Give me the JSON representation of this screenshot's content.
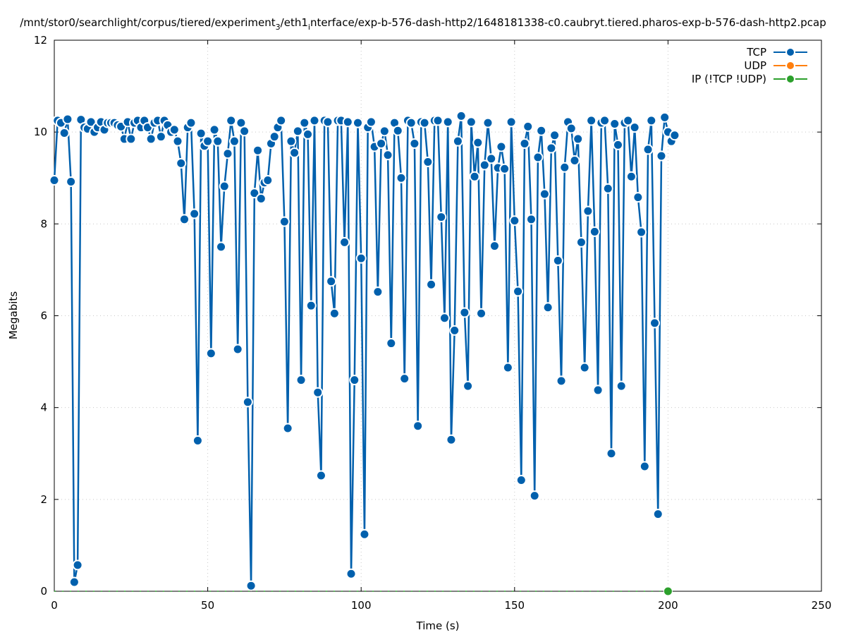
{
  "chart_data": {
    "type": "line",
    "title": {
      "part1": "/mnt/stor0/searchlight/corpus/tiered/experiment",
      "sub1": "3",
      "part2": "/eth1",
      "sub2": "i",
      "part3": "nterface/exp-b-576-dash-http2/1648181338-c0.caubryt.tiered.pharos-exp-b-576-dash-http2.pcap"
    },
    "xlabel": "Time (s)",
    "ylabel": "Megabits",
    "xlim": [
      0,
      250
    ],
    "ylim": [
      0,
      12
    ],
    "xticks": [
      "0",
      "50",
      "100",
      "150",
      "200",
      "250"
    ],
    "yticks": [
      "0",
      "2",
      "4",
      "6",
      "8",
      "10",
      "12"
    ],
    "grid": true,
    "legend_position": "top-right",
    "x_interval": 1.087,
    "series": [
      {
        "name": "TCP",
        "color": "#0060ad",
        "values": [
          8.95,
          10.25,
          10.2,
          9.98,
          10.28,
          8.92,
          0.2,
          0.57,
          10.27,
          10.1,
          10.07,
          10.22,
          10.0,
          10.1,
          10.22,
          10.05,
          10.2,
          10.2,
          10.2,
          10.15,
          10.12,
          9.85,
          10.22,
          9.85,
          10.2,
          10.25,
          10.1,
          10.25,
          10.1,
          9.85,
          10.2,
          10.25,
          9.9,
          10.25,
          10.15,
          10.0,
          10.05,
          9.8,
          9.32,
          8.1,
          10.1,
          10.2,
          8.22,
          3.28,
          9.97,
          9.7,
          9.8,
          5.18,
          10.05,
          9.8,
          7.5,
          8.82,
          9.53,
          10.25,
          9.8,
          5.27,
          10.2,
          10.02,
          4.12,
          0.12,
          8.67,
          9.6,
          8.55,
          8.9,
          8.95,
          9.75,
          9.9,
          10.1,
          10.25,
          8.05,
          3.55,
          9.8,
          9.55,
          10.02,
          4.6,
          10.2,
          9.95,
          6.22,
          10.25,
          4.33,
          2.52,
          10.25,
          10.22,
          6.75,
          6.05,
          10.25,
          10.25,
          7.6,
          10.22,
          0.38,
          4.6,
          10.2,
          7.25,
          1.24,
          10.1,
          10.22,
          9.68,
          6.52,
          9.75,
          10.02,
          9.5,
          5.4,
          10.2,
          10.03,
          9.0,
          4.63,
          10.25,
          10.2,
          9.75,
          3.6,
          10.22,
          10.2,
          9.35,
          6.68,
          10.25,
          10.25,
          8.15,
          5.95,
          10.22,
          3.3,
          5.68,
          9.8,
          10.35,
          6.07,
          4.47,
          10.22,
          9.03,
          9.77,
          6.05,
          9.28,
          10.2,
          9.42,
          7.52,
          9.22,
          9.68,
          9.2,
          4.87,
          10.22,
          8.07,
          6.53,
          2.42,
          9.75,
          10.12,
          8.1,
          2.08,
          9.45,
          10.03,
          8.65,
          6.18,
          9.65,
          9.93,
          7.2,
          4.58,
          9.23,
          10.22,
          10.08,
          9.38,
          9.85,
          7.6,
          4.87,
          8.28,
          10.25,
          7.83,
          4.38,
          10.2,
          10.25,
          8.77,
          3.0,
          10.18,
          9.72,
          4.47,
          10.2,
          10.25,
          9.03,
          10.1,
          8.58,
          7.82,
          2.72,
          9.62,
          10.25,
          5.84,
          1.68,
          9.48,
          10.32,
          10.0,
          9.8,
          9.93
        ]
      },
      {
        "name": "UDP",
        "color": "#ff7f0e",
        "values": []
      },
      {
        "name": "IP (!TCP  !UDP)",
        "color": "#2ca02c",
        "values": [
          0
        ],
        "x": [
          200
        ]
      }
    ]
  }
}
